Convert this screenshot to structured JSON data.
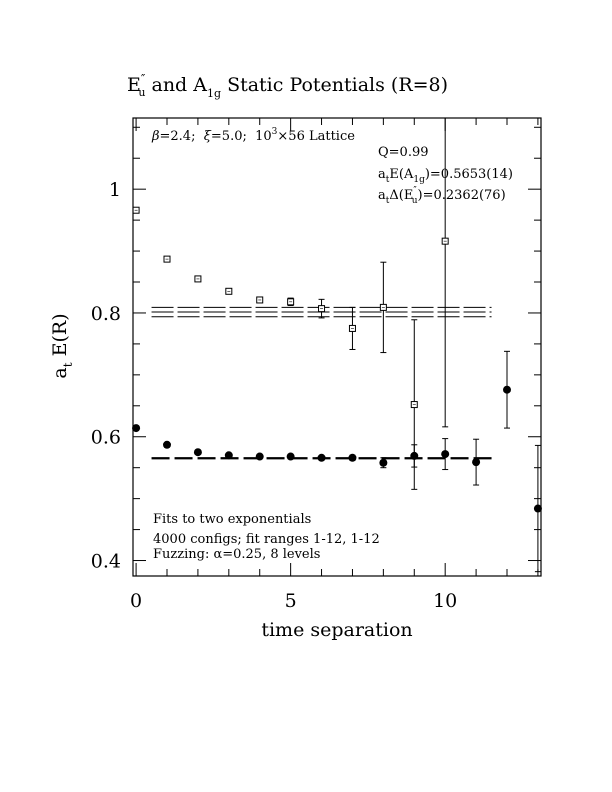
{
  "chart_data": {
    "type": "scatter",
    "title": {
      "part1_main": "E",
      "part1_sup": "″",
      "part1_sub": "u",
      "part2": " and A",
      "part2_sub": "1g",
      "part3": " Static Potentials (R=8)"
    },
    "xlabel": "time separation",
    "ylabel": {
      "main": "a",
      "sub": "t",
      "rest": " E(R)"
    },
    "xlim": [
      -0.1,
      13.1
    ],
    "ylim": [
      0.375,
      1.115
    ],
    "x_ticks": [
      0,
      5,
      10
    ],
    "y_ticks": [
      0.4,
      0.6,
      0.8,
      1.0
    ],
    "x_tick_labels": [
      "0",
      "5",
      "10"
    ],
    "y_tick_labels": [
      "0.4",
      "0.6",
      "0.8",
      "1"
    ],
    "grid": false,
    "annotations": {
      "lattice": {
        "beta": "β",
        "a": "=2.4;  ",
        "xi": "ξ",
        "b": "=5.0;  10",
        "sup": "3",
        "c": "×56 Lattice"
      },
      "q": "Q=0.99",
      "fit_a1g": {
        "a": "a",
        "sub1": "t",
        "b": "E(A",
        "sub2": "1g",
        "c": ")=0.5653(14)"
      },
      "fit_eu": {
        "a": "a",
        "sub1": "t",
        "b": "Δ(E",
        "sup": "″",
        "sub2": "u",
        "c": ")=0.2362(76)"
      },
      "note1": "Fits to two exponentials",
      "note2": "4000 configs; fit ranges 1-12, 1-12",
      "note3": "Fuzzing: α=0.25, 8 levels"
    },
    "series": [
      {
        "marker": "filled-circle",
        "points": [
          {
            "x": 0,
            "y": 0.614,
            "err": 0.003
          },
          {
            "x": 1,
            "y": 0.587,
            "err": 0.003
          },
          {
            "x": 2,
            "y": 0.575,
            "err": 0.003
          },
          {
            "x": 3,
            "y": 0.57,
            "err": 0.003
          },
          {
            "x": 4,
            "y": 0.568,
            "err": 0.003
          },
          {
            "x": 5,
            "y": 0.568,
            "err": 0.003
          },
          {
            "x": 6,
            "y": 0.566,
            "err": 0.003
          },
          {
            "x": 7,
            "y": 0.566,
            "err": 0.004
          },
          {
            "x": 8,
            "y": 0.558,
            "err": 0.008
          },
          {
            "x": 9,
            "y": 0.569,
            "err": 0.018
          },
          {
            "x": 10,
            "y": 0.572,
            "err": 0.025
          },
          {
            "x": 11,
            "y": 0.559,
            "err": 0.037
          },
          {
            "x": 12,
            "y": 0.676,
            "err": 0.062
          },
          {
            "x": 13,
            "y": 0.484,
            "err": 0.102
          }
        ],
        "fit": {
          "y": 0.5653,
          "band": [
            0.5639,
            0.5667
          ],
          "x_range": [
            0.5,
            11.5
          ]
        }
      },
      {
        "marker": "open-square",
        "points": [
          {
            "x": 0,
            "y": 0.966,
            "err": 0.0
          },
          {
            "x": 1,
            "y": 0.887,
            "err": 0.0
          },
          {
            "x": 2,
            "y": 0.855,
            "err": 0.0
          },
          {
            "x": 3,
            "y": 0.835,
            "err": 0.0
          },
          {
            "x": 4,
            "y": 0.821,
            "err": 0.003
          },
          {
            "x": 5,
            "y": 0.818,
            "err": 0.006
          },
          {
            "x": 6,
            "y": 0.807,
            "err": 0.015
          },
          {
            "x": 7,
            "y": 0.775,
            "err": 0.034
          },
          {
            "x": 8,
            "y": 0.809,
            "err": 0.073
          },
          {
            "x": 9,
            "y": 0.652,
            "err": 0.137
          },
          {
            "x": 10,
            "y": 0.916,
            "err": 0.3
          }
        ],
        "fit": {
          "y": 0.8015,
          "band": [
            0.7939,
            0.8091
          ],
          "x_range": [
            0.5,
            11.5
          ]
        }
      }
    ]
  }
}
